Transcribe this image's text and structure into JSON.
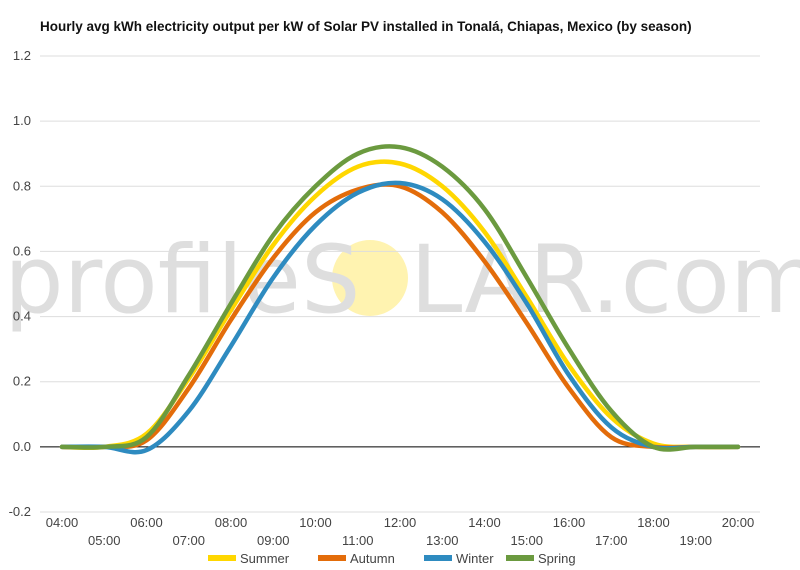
{
  "chart_data": {
    "type": "line",
    "title": "Hourly avg kWh electricity output per kW of Solar PV installed in Tonalá, Chiapas, Mexico (by season)",
    "xlabel": "",
    "ylabel": "",
    "x": [
      "04:00",
      "05:00",
      "06:00",
      "07:00",
      "08:00",
      "09:00",
      "10:00",
      "11:00",
      "12:00",
      "13:00",
      "14:00",
      "15:00",
      "16:00",
      "17:00",
      "18:00",
      "19:00",
      "20:00"
    ],
    "ylim": [
      -0.2,
      1.2
    ],
    "yticks": [
      "1.2",
      "1.0",
      "0.8",
      "0.6",
      "0.4",
      "0.2",
      "0.0",
      "-0.2"
    ],
    "grid": true,
    "legend_position": "bottom",
    "series": [
      {
        "name": "Summer",
        "color": "#ffd700",
        "values": [
          0,
          0,
          0.04,
          0.21,
          0.42,
          0.62,
          0.77,
          0.86,
          0.87,
          0.8,
          0.66,
          0.46,
          0.25,
          0.09,
          0.01,
          0,
          0
        ]
      },
      {
        "name": "Autumn",
        "color": "#e36c0a",
        "values": [
          0,
          0,
          0.02,
          0.18,
          0.39,
          0.58,
          0.72,
          0.79,
          0.8,
          0.72,
          0.57,
          0.38,
          0.18,
          0.03,
          0,
          0,
          0
        ]
      },
      {
        "name": "Winter",
        "color": "#2e8bc0",
        "values": [
          0,
          0,
          -0.01,
          0.11,
          0.31,
          0.52,
          0.68,
          0.78,
          0.81,
          0.76,
          0.63,
          0.44,
          0.22,
          0.06,
          0,
          0,
          0
        ]
      },
      {
        "name": "Spring",
        "color": "#6b9a3f",
        "values": [
          0,
          0,
          0.03,
          0.22,
          0.44,
          0.65,
          0.8,
          0.9,
          0.92,
          0.86,
          0.73,
          0.52,
          0.3,
          0.11,
          0,
          0,
          0
        ]
      }
    ]
  },
  "watermark": {
    "left": "profileS",
    "right": "LAR.com",
    "sun_color": "#fff3b0"
  }
}
